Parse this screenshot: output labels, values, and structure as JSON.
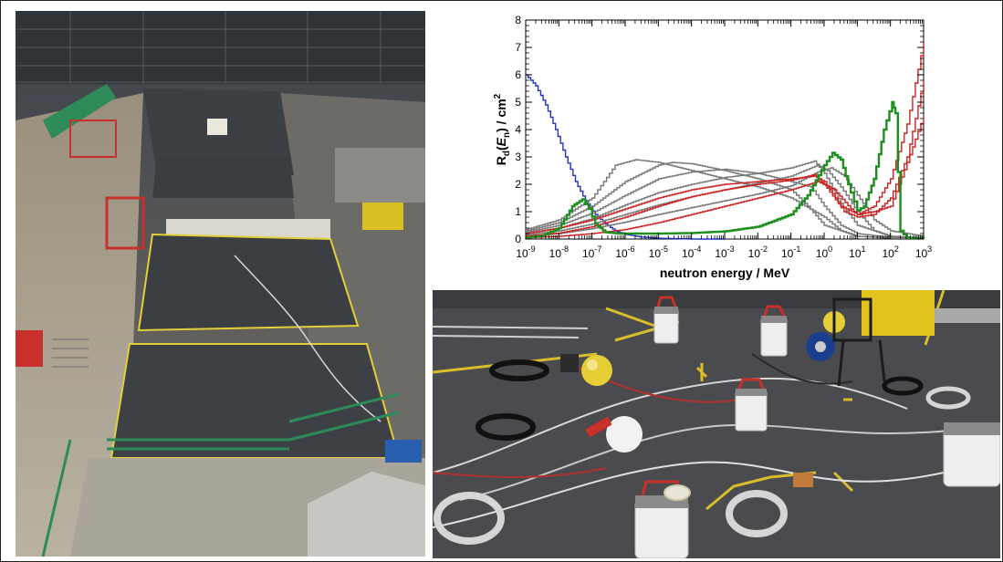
{
  "chart_data": {
    "type": "line",
    "xlabel": "neutron energy / MeV",
    "ylabel_parts": {
      "r": "R",
      "sub_d": "d",
      "paren_open": "(",
      "e": "E",
      "sub_n": "n",
      "paren_close": ") / cm",
      "sup2": "2"
    },
    "x_scale": "log",
    "xlim": [
      1e-09,
      1000
    ],
    "ylim": [
      0,
      8
    ],
    "x_tick_exponents": [
      "-9",
      "-8",
      "-7",
      "-6",
      "-5",
      "-4",
      "-3",
      "-2",
      "-1",
      "0",
      "1",
      "2",
      "3"
    ],
    "y_ticks": [
      "0",
      "1",
      "2",
      "3",
      "4",
      "5",
      "6",
      "7",
      "8"
    ],
    "series": [
      {
        "color": "#2233cc",
        "points": [
          [
            -9,
            6.0
          ],
          [
            -8.7,
            5.6
          ],
          [
            -8.4,
            4.9
          ],
          [
            -8.1,
            4.0
          ],
          [
            -7.8,
            3.0
          ],
          [
            -7.5,
            2.1
          ],
          [
            -7.2,
            1.4
          ],
          [
            -6.9,
            0.9
          ],
          [
            -6.6,
            0.55
          ],
          [
            -6.3,
            0.3
          ],
          [
            -6.0,
            0.17
          ],
          [
            -5.5,
            0.07
          ],
          [
            -5,
            0.03
          ],
          [
            -4,
            0.0
          ],
          [
            -3,
            0.0
          ]
        ]
      },
      {
        "color": "#777777",
        "points": [
          [
            -9,
            0.35
          ],
          [
            -8,
            0.7
          ],
          [
            -7,
            1.5
          ],
          [
            -6.3,
            2.7
          ],
          [
            -5.7,
            2.9
          ],
          [
            -5,
            2.8
          ],
          [
            -4,
            2.5
          ],
          [
            -3,
            2.2
          ],
          [
            -2,
            1.9
          ],
          [
            -1,
            1.5
          ],
          [
            0,
            0.8
          ],
          [
            0.5,
            0.3
          ],
          [
            1,
            0.1
          ],
          [
            2,
            0.03
          ],
          [
            3,
            0.02
          ]
        ]
      },
      {
        "color": "#777777",
        "points": [
          [
            -9,
            0.3
          ],
          [
            -8,
            0.6
          ],
          [
            -7,
            1.2
          ],
          [
            -6,
            2.1
          ],
          [
            -5,
            2.7
          ],
          [
            -4.6,
            2.8
          ],
          [
            -4,
            2.75
          ],
          [
            -3,
            2.5
          ],
          [
            -2,
            2.2
          ],
          [
            -1,
            1.8
          ],
          [
            -0.5,
            1.2
          ],
          [
            0,
            0.5
          ],
          [
            1,
            0.1
          ],
          [
            2,
            0.03
          ],
          [
            3,
            0.02
          ]
        ]
      },
      {
        "color": "#777777",
        "points": [
          [
            -9,
            0.25
          ],
          [
            -8,
            0.5
          ],
          [
            -7,
            0.95
          ],
          [
            -6,
            1.6
          ],
          [
            -5,
            2.2
          ],
          [
            -4,
            2.45
          ],
          [
            -3,
            2.55
          ],
          [
            -2,
            2.4
          ],
          [
            -1,
            2.1
          ],
          [
            -0.4,
            1.9
          ],
          [
            0,
            1.2
          ],
          [
            0.5,
            0.5
          ],
          [
            1,
            0.2
          ],
          [
            2,
            0.05
          ],
          [
            3,
            0.02
          ]
        ]
      },
      {
        "color": "#777777",
        "points": [
          [
            -9,
            0.2
          ],
          [
            -8,
            0.4
          ],
          [
            -7,
            0.75
          ],
          [
            -6,
            1.25
          ],
          [
            -5,
            1.7
          ],
          [
            -4,
            2.0
          ],
          [
            -3,
            2.25
          ],
          [
            -2,
            2.4
          ],
          [
            -1,
            2.6
          ],
          [
            -0.3,
            2.85
          ],
          [
            0,
            2.4
          ],
          [
            0.5,
            1.3
          ],
          [
            1,
            0.5
          ],
          [
            2,
            0.1
          ],
          [
            3,
            0.03
          ]
        ]
      },
      {
        "color": "#777777",
        "points": [
          [
            -9,
            0.15
          ],
          [
            -8,
            0.3
          ],
          [
            -7,
            0.55
          ],
          [
            -6,
            0.9
          ],
          [
            -5,
            1.25
          ],
          [
            -4,
            1.55
          ],
          [
            -3,
            1.8
          ],
          [
            -2,
            2.05
          ],
          [
            -1,
            2.3
          ],
          [
            -0.2,
            2.7
          ],
          [
            0.1,
            2.5
          ],
          [
            0.5,
            1.9
          ],
          [
            1,
            1.0
          ],
          [
            1.5,
            0.3
          ],
          [
            2,
            0.1
          ],
          [
            3,
            0.05
          ]
        ]
      },
      {
        "color": "#777777",
        "points": [
          [
            -9,
            0.1
          ],
          [
            -8,
            0.2
          ],
          [
            -7,
            0.38
          ],
          [
            -6,
            0.62
          ],
          [
            -5,
            0.9
          ],
          [
            -4,
            1.15
          ],
          [
            -3,
            1.4
          ],
          [
            -2,
            1.65
          ],
          [
            -1,
            1.95
          ],
          [
            -0.2,
            2.45
          ],
          [
            0.2,
            2.6
          ],
          [
            0.6,
            2.3
          ],
          [
            1,
            1.6
          ],
          [
            1.5,
            0.7
          ],
          [
            2,
            0.3
          ],
          [
            3,
            0.1
          ]
        ]
      },
      {
        "color": "#cc2222",
        "points": [
          [
            -9,
            0.2
          ],
          [
            -8,
            0.4
          ],
          [
            -7,
            0.7
          ],
          [
            -6,
            1.1
          ],
          [
            -5,
            1.5
          ],
          [
            -4,
            1.8
          ],
          [
            -3,
            2.0
          ],
          [
            -2,
            2.1
          ],
          [
            -1,
            2.2
          ],
          [
            -0.3,
            2.3
          ],
          [
            0,
            2.1
          ],
          [
            0.5,
            1.2
          ],
          [
            1,
            0.9
          ],
          [
            1.5,
            1.0
          ],
          [
            2,
            1.2
          ],
          [
            2.5,
            2.8
          ],
          [
            3,
            4.5
          ]
        ]
      },
      {
        "color": "#cc2222",
        "points": [
          [
            -9,
            0.1
          ],
          [
            -8,
            0.22
          ],
          [
            -7,
            0.45
          ],
          [
            -6,
            0.8
          ],
          [
            -5,
            1.2
          ],
          [
            -4,
            1.55
          ],
          [
            -3,
            1.8
          ],
          [
            -2,
            2.0
          ],
          [
            -1,
            2.15
          ],
          [
            -0.3,
            2.35
          ],
          [
            0,
            2.0
          ],
          [
            0.6,
            1.0
          ],
          [
            1,
            0.8
          ],
          [
            1.5,
            0.9
          ],
          [
            2,
            1.5
          ],
          [
            2.5,
            3.0
          ],
          [
            3,
            5.8
          ]
        ]
      },
      {
        "color": "#cc2222",
        "points": [
          [
            -9,
            0.05
          ],
          [
            -8,
            0.1
          ],
          [
            -7,
            0.2
          ],
          [
            -6,
            0.35
          ],
          [
            -5,
            0.6
          ],
          [
            -4,
            0.9
          ],
          [
            -3,
            1.2
          ],
          [
            -2,
            1.5
          ],
          [
            -1,
            1.8
          ],
          [
            -0.2,
            2.1
          ],
          [
            0.3,
            1.8
          ],
          [
            0.8,
            1.1
          ],
          [
            1,
            0.9
          ],
          [
            1.5,
            1.2
          ],
          [
            2,
            2.2
          ],
          [
            2.5,
            4.2
          ],
          [
            3,
            7.2
          ]
        ]
      },
      {
        "color": "#1e8f1e",
        "points": [
          [
            -9,
            0.05
          ],
          [
            -8.5,
            0.12
          ],
          [
            -8,
            0.4
          ],
          [
            -7.6,
            1.2
          ],
          [
            -7.3,
            1.45
          ],
          [
            -7.1,
            1.1
          ],
          [
            -6.9,
            0.55
          ],
          [
            -6.6,
            0.25
          ],
          [
            -6.2,
            0.2
          ],
          [
            -5,
            0.2
          ],
          [
            -4,
            0.22
          ],
          [
            -3,
            0.28
          ],
          [
            -2,
            0.45
          ],
          [
            -1,
            0.9
          ],
          [
            -0.5,
            1.6
          ],
          [
            0,
            2.7
          ],
          [
            0.25,
            3.15
          ],
          [
            0.5,
            2.9
          ],
          [
            0.8,
            1.7
          ],
          [
            1,
            1.05
          ],
          [
            1.2,
            1.2
          ],
          [
            1.5,
            2.2
          ],
          [
            1.8,
            4.0
          ],
          [
            2.05,
            5.0
          ],
          [
            2.15,
            4.6
          ],
          [
            2.3,
            0.3
          ],
          [
            2.5,
            0.05
          ],
          [
            3,
            0.02
          ]
        ]
      }
    ]
  }
}
